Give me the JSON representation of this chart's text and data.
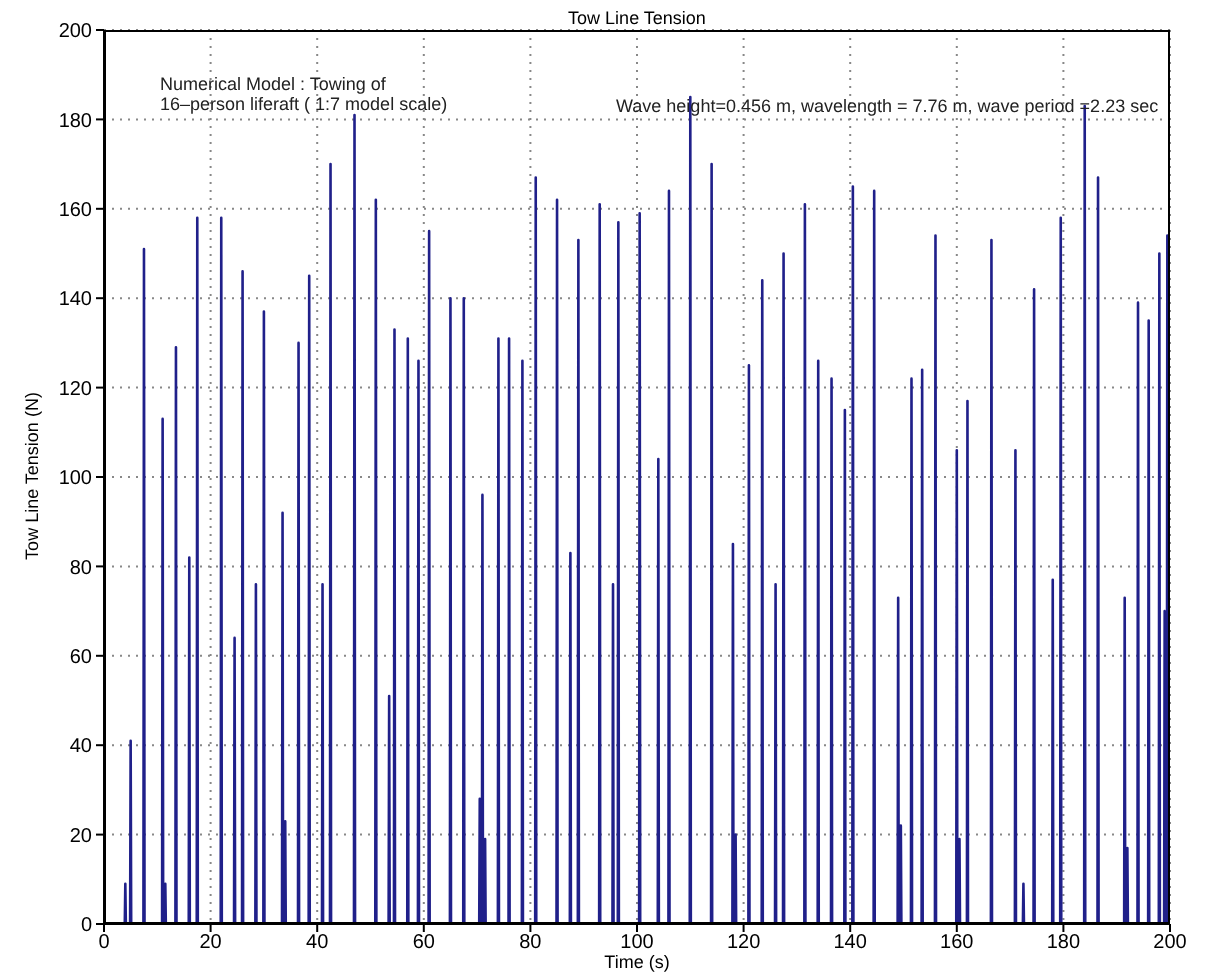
{
  "chart_data": {
    "type": "line",
    "title": "Tow Line Tension",
    "xlabel": "Time (s)",
    "ylabel": "Tow Line Tension (N)",
    "annotations": [
      "Numerical Model : Towing of\n16–person liferaft ( 1:7 model scale)",
      "Wave height=0.456 m, wavelength = 7.76 m, wave period =2.23 sec"
    ],
    "xlim": [
      0,
      200
    ],
    "xticks": [
      0,
      20,
      40,
      60,
      80,
      100,
      120,
      140,
      160,
      180,
      200
    ],
    "ylim": [
      0,
      200
    ],
    "yticks": [
      0,
      20,
      40,
      60,
      80,
      100,
      120,
      140,
      160,
      180,
      200
    ],
    "grid": true,
    "marker": "none",
    "line_style": "solid",
    "series": [
      {
        "color": "#20208a",
        "x": [
          0,
          3.9,
          4,
          4.1,
          4.9,
          5,
          5.1,
          7.4,
          7.5,
          7.6,
          10.9,
          11,
          11.1,
          11.4,
          11.5,
          11.6,
          13.4,
          13.5,
          13.6,
          15.9,
          16,
          16.1,
          17.4,
          17.5,
          17.6,
          21.9,
          22,
          22.1,
          24.4,
          24.5,
          24.6,
          25.9,
          26,
          26.1,
          28.4,
          28.5,
          28.6,
          29.9,
          30,
          30.1,
          33.4,
          33.5,
          33.6,
          33.9,
          34,
          34.1,
          36.4,
          36.5,
          36.6,
          38.4,
          38.5,
          38.6,
          40.9,
          41,
          41.1,
          42.4,
          42.5,
          42.6,
          46.9,
          47,
          47.1,
          50.9,
          51,
          51.1,
          53.4,
          53.5,
          53.6,
          54.4,
          54.5,
          54.6,
          56.9,
          57,
          57.1,
          58.9,
          59,
          59.1,
          60.9,
          61,
          61.1,
          64.9,
          65,
          65.1,
          67.4,
          67.5,
          67.6,
          70.4,
          70.5,
          70.6,
          70.9,
          71,
          71.1,
          71.4,
          71.5,
          71.6,
          73.9,
          74,
          74.1,
          75.9,
          76,
          76.1,
          78.4,
          78.5,
          78.6,
          80.9,
          81,
          81.1,
          84.9,
          85,
          85.1,
          87.4,
          87.5,
          87.6,
          88.9,
          89,
          89.1,
          92.9,
          93,
          93.1,
          95.4,
          95.5,
          95.6,
          96.4,
          96.5,
          96.6,
          100.4,
          100.5,
          100.6,
          103.9,
          104,
          104.1,
          105.9,
          106,
          106.1,
          109.9,
          110,
          110.1,
          113.9,
          114,
          114.1,
          117.9,
          118,
          118.1,
          118.4,
          118.5,
          118.6,
          120.9,
          121,
          121.1,
          123.4,
          123.5,
          123.6,
          125.9,
          126,
          126.1,
          127.4,
          127.5,
          127.6,
          131.4,
          131.5,
          131.6,
          133.9,
          134,
          134.1,
          136.4,
          136.5,
          136.6,
          138.9,
          139,
          139.1,
          140.4,
          140.5,
          140.6,
          144.4,
          144.5,
          144.6,
          148.9,
          149,
          149.1,
          149.4,
          149.5,
          149.6,
          151.4,
          151.5,
          151.6,
          153.4,
          153.5,
          153.6,
          155.9,
          156,
          156.1,
          159.9,
          160,
          160.1,
          160.4,
          160.5,
          160.6,
          161.9,
          162,
          162.1,
          166.4,
          166.5,
          166.6,
          170.9,
          171,
          171.1,
          172.4,
          172.5,
          172.6,
          174.4,
          174.5,
          174.6,
          177.9,
          178,
          178.1,
          179.4,
          179.5,
          179.6,
          183.9,
          184,
          184.1,
          186.4,
          186.5,
          186.6,
          191.4,
          191.5,
          191.6,
          191.9,
          192,
          192.1,
          193.9,
          194,
          194.1,
          195.9,
          196,
          196.1,
          197.9,
          198,
          198.1,
          198.9,
          199,
          199.1,
          199.4,
          199.5,
          199.6,
          199.9,
          200
        ],
        "values": [
          0,
          0,
          9,
          0,
          0,
          41,
          0,
          0,
          151,
          0,
          0,
          113,
          0,
          0,
          9,
          0,
          0,
          129,
          0,
          0,
          82,
          0,
          0,
          158,
          0,
          0,
          158,
          0,
          0,
          64,
          0,
          0,
          146,
          0,
          0,
          76,
          0,
          0,
          137,
          0,
          0,
          92,
          0,
          0,
          23,
          0,
          0,
          130,
          0,
          0,
          145,
          0,
          0,
          76,
          0,
          0,
          170,
          0,
          0,
          181,
          0,
          0,
          162,
          0,
          0,
          51,
          0,
          0,
          133,
          0,
          0,
          131,
          0,
          0,
          126,
          0,
          0,
          155,
          0,
          0,
          140,
          0,
          0,
          140,
          0,
          0,
          28,
          0,
          0,
          96,
          0,
          0,
          19,
          0,
          0,
          131,
          0,
          0,
          131,
          0,
          0,
          126,
          0,
          0,
          167,
          0,
          0,
          162,
          0,
          0,
          83,
          0,
          0,
          153,
          0,
          0,
          161,
          0,
          0,
          76,
          0,
          0,
          157,
          0,
          0,
          159,
          0,
          0,
          104,
          0,
          0,
          164,
          0,
          0,
          185,
          0,
          0,
          170,
          0,
          0,
          85,
          0,
          0,
          20,
          0,
          0,
          125,
          0,
          0,
          144,
          0,
          0,
          76,
          0,
          0,
          150,
          0,
          0,
          161,
          0,
          0,
          126,
          0,
          0,
          122,
          0,
          0,
          115,
          0,
          0,
          165,
          0,
          0,
          164,
          0,
          0,
          73,
          0,
          0,
          22,
          0,
          0,
          122,
          0,
          0,
          124,
          0,
          0,
          154,
          0,
          0,
          106,
          0,
          0,
          19,
          0,
          0,
          117,
          0,
          0,
          153,
          0,
          0,
          106,
          0,
          0,
          9,
          0,
          0,
          142,
          0,
          0,
          77,
          0,
          0,
          158,
          0,
          0,
          183,
          0,
          0,
          167,
          0,
          0,
          73,
          0,
          0,
          17,
          0,
          0,
          139,
          0,
          0,
          135,
          0,
          0,
          150,
          0,
          0,
          70,
          0,
          0,
          154,
          0,
          0,
          118
        ]
      }
    ]
  }
}
